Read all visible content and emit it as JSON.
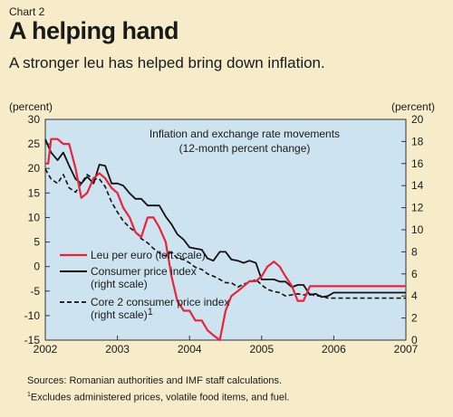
{
  "header": {
    "eyebrow": "Chart 2",
    "title": "A helping hand",
    "subtitle": "A stronger leu has helped bring down inflation."
  },
  "chart_data": {
    "type": "line",
    "title": "Inflation and exchange rate movements",
    "subtitle": "(12-month percent change)",
    "left_axis_unit": "(percent)",
    "right_axis_unit": "(percent)",
    "left_ylim": [
      -15,
      30
    ],
    "right_ylim": [
      0,
      20
    ],
    "left_ticks": [
      -15,
      -10,
      -5,
      0,
      5,
      10,
      15,
      20,
      25,
      30
    ],
    "right_ticks": [
      0,
      2,
      4,
      6,
      8,
      10,
      12,
      14,
      16,
      18,
      20
    ],
    "xlim": [
      2002,
      2007
    ],
    "x_ticks": [
      "2002",
      "2003",
      "2004",
      "2005",
      "2006",
      "2007"
    ],
    "grid": false,
    "legend_position": "lower-left",
    "colors": {
      "background": "#f6ecc9",
      "plot_background": "#cde3ef",
      "leu": "#e8243d",
      "cpi": "#111111",
      "core": "#111111"
    },
    "series": [
      {
        "name": "Leu per euro (left scale)",
        "axis": "left",
        "style": "solid",
        "x": [
          2002.0,
          2002.04,
          2002.08,
          2002.17,
          2002.25,
          2002.33,
          2002.42,
          2002.5,
          2002.58,
          2002.67,
          2002.75,
          2002.83,
          2002.92,
          2003.0,
          2003.08,
          2003.17,
          2003.25,
          2003.33,
          2003.42,
          2003.5,
          2003.58,
          2003.67,
          2003.75,
          2003.83,
          2003.92,
          2004.0,
          2004.08,
          2004.17,
          2004.25,
          2004.33,
          2004.42,
          2004.5,
          2004.58,
          2004.67,
          2004.75,
          2004.83,
          2004.92,
          2005.0,
          2005.08,
          2005.17,
          2005.25,
          2005.33,
          2005.42,
          2005.5,
          2005.58,
          2005.67,
          2005.75,
          2005.83,
          2005.92,
          2006.0,
          2006.08,
          2006.17,
          2006.25,
          2006.33,
          2006.42,
          2006.5,
          2006.58,
          2006.67,
          2006.75,
          2006.83,
          2006.92,
          2007.0
        ],
        "y": [
          21,
          21,
          26,
          26,
          25,
          25,
          20,
          14,
          15,
          18,
          19,
          18,
          16,
          15,
          12,
          10,
          7,
          6,
          10,
          10,
          8,
          5,
          -2,
          -7,
          -9,
          -9,
          -11,
          -11,
          -13,
          -14,
          -15,
          -9,
          -6,
          -5,
          -4,
          -3,
          -3,
          -2,
          0,
          1,
          0,
          -2,
          -4,
          -7,
          -7,
          -4,
          -4,
          -4,
          -4,
          -4,
          -4,
          -4,
          -4,
          -4,
          -4,
          -4,
          -4,
          -4,
          -4,
          -4,
          -4,
          -4
        ]
      },
      {
        "name": "Consumer price index (right scale)",
        "axis": "right",
        "style": "solid",
        "x": [
          2002.0,
          2002.08,
          2002.17,
          2002.25,
          2002.33,
          2002.42,
          2002.5,
          2002.58,
          2002.67,
          2002.75,
          2002.83,
          2002.92,
          2003.0,
          2003.08,
          2003.17,
          2003.25,
          2003.33,
          2003.42,
          2003.5,
          2003.58,
          2003.67,
          2003.75,
          2003.83,
          2003.92,
          2004.0,
          2004.08,
          2004.17,
          2004.25,
          2004.33,
          2004.42,
          2004.5,
          2004.58,
          2004.67,
          2004.75,
          2004.83,
          2004.92,
          2005.0,
          2005.08,
          2005.17,
          2005.25,
          2005.33,
          2005.42,
          2005.5,
          2005.58,
          2005.67,
          2005.75,
          2005.83,
          2005.92,
          2006.0,
          2006.08,
          2006.17,
          2006.25,
          2006.33,
          2006.42,
          2006.5,
          2006.58,
          2006.67,
          2006.75,
          2006.83,
          2006.92,
          2007.0
        ],
        "y": [
          18.2,
          17.0,
          16.3,
          17.0,
          15.8,
          14.6,
          14.2,
          14.8,
          14.2,
          15.9,
          15.8,
          14.2,
          14.2,
          14.0,
          13.3,
          12.8,
          12.8,
          12.2,
          12.2,
          12.2,
          11.2,
          10.5,
          9.6,
          9.1,
          8.4,
          8.3,
          8.2,
          7.4,
          7.2,
          8.0,
          8.0,
          7.3,
          7.2,
          7.0,
          7.2,
          7.0,
          5.5,
          5.5,
          5.5,
          5.3,
          5.3,
          4.8,
          5.0,
          5.0,
          4.1,
          4.2,
          3.9,
          4.0,
          4.3,
          4.3,
          4.3,
          4.3,
          4.3,
          4.3,
          4.3,
          4.3,
          4.3,
          4.3,
          4.3,
          4.3,
          4.3
        ]
      },
      {
        "name": "Core 2 consumer price index (right scale)",
        "axis": "right",
        "style": "dashed",
        "x": [
          2002.0,
          2002.08,
          2002.17,
          2002.25,
          2002.33,
          2002.42,
          2002.5,
          2002.58,
          2002.67,
          2002.75,
          2002.83,
          2002.92,
          2003.0,
          2003.08,
          2003.17,
          2003.25,
          2003.33,
          2003.42,
          2003.5,
          2003.58,
          2003.67,
          2003.75,
          2003.83,
          2003.92,
          2004.0,
          2004.08,
          2004.17,
          2004.25,
          2004.33,
          2004.42,
          2004.5,
          2004.58,
          2004.67,
          2004.75,
          2004.83,
          2004.92,
          2005.0,
          2005.08,
          2005.17,
          2005.25,
          2005.33,
          2005.42,
          2005.5,
          2005.58,
          2005.67,
          2005.75,
          2005.83,
          2005.92,
          2006.0,
          2006.08,
          2006.17,
          2006.25,
          2006.33,
          2006.42,
          2006.5,
          2006.58,
          2006.67,
          2006.75,
          2006.83,
          2006.92,
          2007.0
        ],
        "y": [
          15.5,
          14.6,
          14.2,
          15.0,
          13.8,
          13.4,
          14.2,
          15.0,
          14.6,
          14.6,
          13.9,
          12.5,
          11.6,
          10.8,
          10.2,
          9.8,
          9.2,
          8.8,
          8.3,
          7.9,
          7.6,
          8.0,
          7.4,
          7.3,
          7.0,
          6.6,
          6.4,
          6.0,
          5.8,
          5.5,
          5.2,
          5.2,
          4.8,
          5.1,
          5.2,
          5.5,
          5.0,
          4.6,
          4.4,
          4.3,
          4.0,
          4.1,
          4.2,
          4.1,
          4.2,
          4.0,
          4.0,
          3.8,
          3.8,
          3.8,
          3.8,
          3.8,
          3.8,
          3.8,
          3.8,
          3.8,
          3.8,
          3.8,
          3.8,
          3.8,
          3.8
        ]
      }
    ]
  },
  "legend": {
    "leu": "Leu per euro (left scale)",
    "cpi_line1": "Consumer price index",
    "cpi_line2": "(right scale)",
    "core_line1": "Core 2 consumer price index",
    "core_line2": "(right scale)",
    "core_footnote_mark": "1"
  },
  "notes": {
    "sources": "Sources: Romanian authorities and IMF staff calculations.",
    "footnote_mark": "1",
    "footnote": "Excludes administered prices, volatile food items, and fuel."
  }
}
